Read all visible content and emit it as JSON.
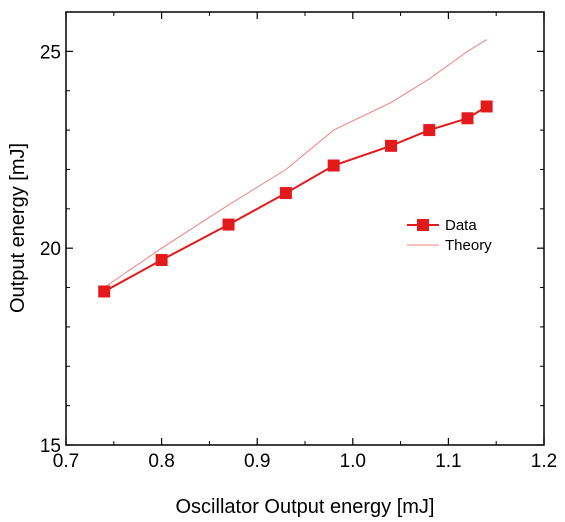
{
  "chart_data": {
    "type": "line",
    "title": "",
    "xlabel": "Oscillator Output energy [mJ]",
    "ylabel": "Output energy [mJ]",
    "xlim": [
      0.7,
      1.2
    ],
    "ylim": [
      15,
      26
    ],
    "x_ticks": [
      "0.7",
      "0.8",
      "0.9",
      "1.0",
      "1.1",
      "1.2"
    ],
    "y_ticks": [
      "15",
      "20",
      "25"
    ],
    "grid": false,
    "legend": "center-right",
    "series": [
      {
        "name": "Data",
        "marker": "square",
        "color": "#e31a1c",
        "x": [
          0.74,
          0.8,
          0.87,
          0.93,
          0.98,
          1.04,
          1.08,
          1.12,
          1.14
        ],
        "values": [
          18.9,
          19.7,
          20.6,
          21.4,
          22.1,
          22.6,
          23.0,
          23.3,
          23.6
        ]
      },
      {
        "name": "Theory",
        "marker": "none",
        "color": "#f08080",
        "x": [
          0.74,
          0.8,
          0.87,
          0.93,
          0.98,
          1.04,
          1.08,
          1.12,
          1.14
        ],
        "values": [
          19.0,
          20.0,
          21.1,
          22.0,
          23.0,
          23.7,
          24.3,
          25.0,
          25.3
        ]
      }
    ]
  }
}
